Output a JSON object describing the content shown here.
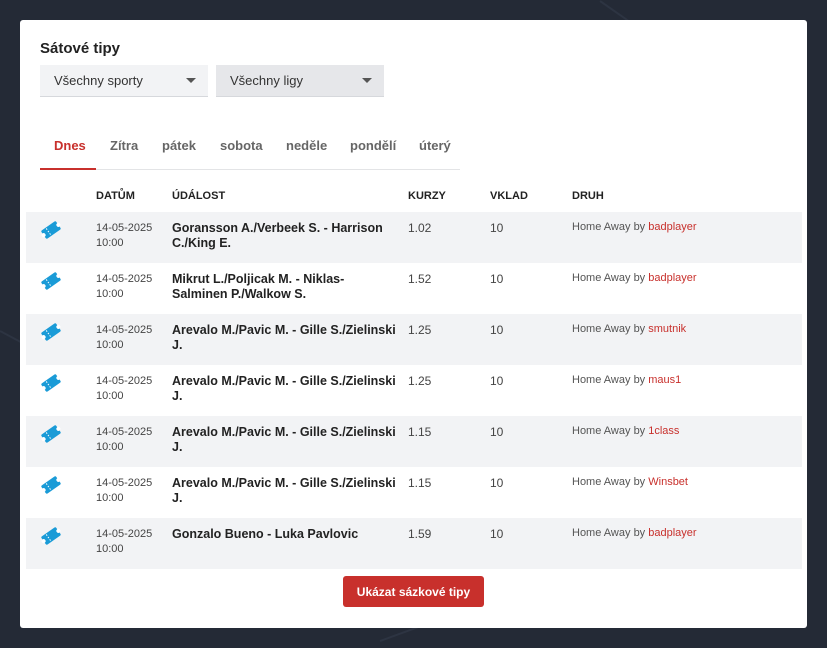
{
  "title": "Sátové tipy",
  "filters": {
    "sport": "Všechny sporty",
    "league": "Všechny ligy"
  },
  "tabs": [
    {
      "label": "Dnes",
      "active": true
    },
    {
      "label": "Zítra"
    },
    {
      "label": "pátek"
    },
    {
      "label": "sobota"
    },
    {
      "label": "neděle"
    },
    {
      "label": "pondělí"
    },
    {
      "label": "úterý"
    }
  ],
  "table": {
    "headers": [
      "DATŮM",
      "ÚDÁLOST",
      "KURZY",
      "VKLAD",
      "DRUH"
    ],
    "by_label": "by",
    "rows": [
      {
        "date": "14-05-2025",
        "time": "10:00",
        "event": "Goransson A./Verbeek S. - Harrison C./King E.",
        "odds": "1.02",
        "stake": "10",
        "kind": "Home Away",
        "user": "badplayer"
      },
      {
        "date": "14-05-2025",
        "time": "10:00",
        "event": "Mikrut L./Poljicak M. - Niklas-Salminen P./Walkow S.",
        "odds": "1.52",
        "stake": "10",
        "kind": "Home Away",
        "user": "badplayer"
      },
      {
        "date": "14-05-2025",
        "time": "10:00",
        "event": "Arevalo M./Pavic M. - Gille S./Zielinski J.",
        "odds": "1.25",
        "stake": "10",
        "kind": "Home Away",
        "user": "smutnik"
      },
      {
        "date": "14-05-2025",
        "time": "10:00",
        "event": "Arevalo M./Pavic M. - Gille S./Zielinski J.",
        "odds": "1.25",
        "stake": "10",
        "kind": "Home Away",
        "user": "maus1"
      },
      {
        "date": "14-05-2025",
        "time": "10:00",
        "event": "Arevalo M./Pavic M. - Gille S./Zielinski J.",
        "odds": "1.15",
        "stake": "10",
        "kind": "Home Away",
        "user": "1class"
      },
      {
        "date": "14-05-2025",
        "time": "10:00",
        "event": "Arevalo M./Pavic M. - Gille S./Zielinski J.",
        "odds": "1.15",
        "stake": "10",
        "kind": "Home Away",
        "user": "Winsbet"
      },
      {
        "date": "14-05-2025",
        "time": "10:00",
        "event": "Gonzalo Bueno - Luka Pavlovic",
        "odds": "1.59",
        "stake": "10",
        "kind": "Home Away",
        "user": "badplayer"
      }
    ]
  },
  "button": "Ukázat sázkové tipy",
  "colors": {
    "accent": "#c8302c",
    "ticket_icon": "#1a9bd7",
    "background": "#242a36"
  },
  "icons": {
    "row": "ticket-icon"
  }
}
